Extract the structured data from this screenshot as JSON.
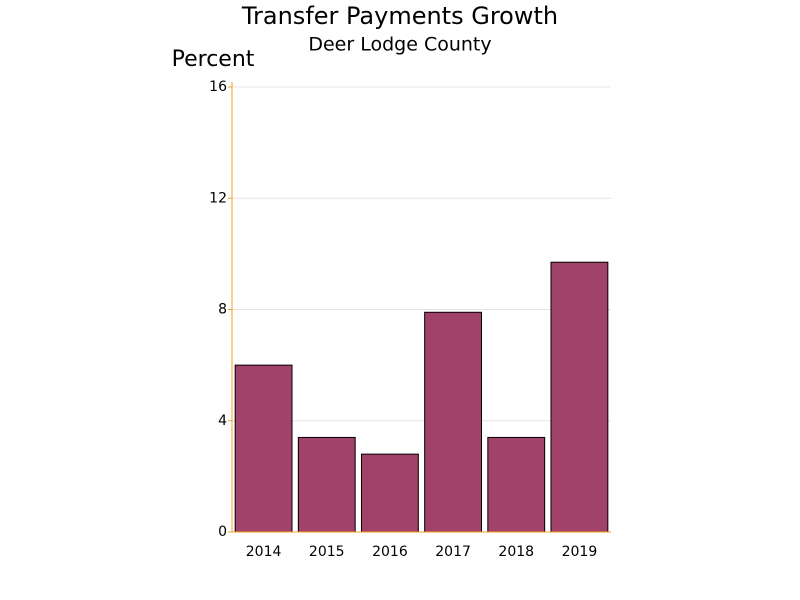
{
  "chart_data": {
    "type": "bar",
    "title": "Transfer Payments Growth",
    "subtitle": "Deer Lodge County",
    "y_label": "Percent",
    "categories": [
      "2014",
      "2015",
      "2016",
      "2017",
      "2018",
      "2019"
    ],
    "values": [
      6.0,
      3.4,
      2.8,
      7.9,
      3.4,
      9.7
    ],
    "color": "#a0426a",
    "ylim": [
      0,
      16
    ],
    "yticks": [
      0,
      4,
      8,
      12,
      16
    ],
    "grid": true
  }
}
